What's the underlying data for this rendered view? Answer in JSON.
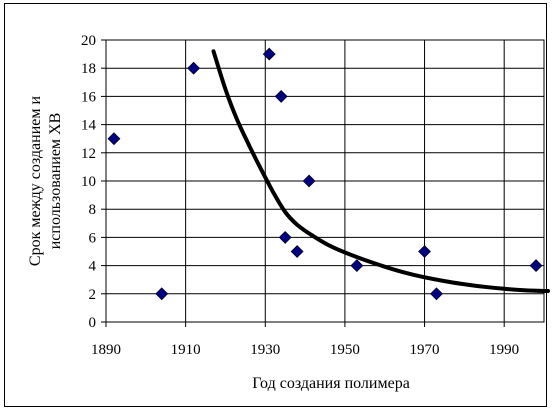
{
  "chart_data": {
    "type": "scatter",
    "title": "",
    "xlabel": "Год создания полимера",
    "ylabel_lines": [
      "Срок между созданием и",
      "использованием ХВ"
    ],
    "xlim": [
      1890,
      2000
    ],
    "ylim": [
      0,
      20
    ],
    "xticks": [
      1890,
      1910,
      1930,
      1950,
      1970,
      1990
    ],
    "yticks": [
      0,
      2,
      4,
      6,
      8,
      10,
      12,
      14,
      16,
      18,
      20
    ],
    "grid": true,
    "legend": "none",
    "series": [
      {
        "marker": "diamond",
        "color": "#000080",
        "points": [
          {
            "x": 1892,
            "y": 13
          },
          {
            "x": 1904,
            "y": 2
          },
          {
            "x": 1912,
            "y": 18
          },
          {
            "x": 1931,
            "y": 19
          },
          {
            "x": 1934,
            "y": 16
          },
          {
            "x": 1935,
            "y": 6
          },
          {
            "x": 1938,
            "y": 5
          },
          {
            "x": 1941,
            "y": 10
          },
          {
            "x": 1953,
            "y": 4
          },
          {
            "x": 1970,
            "y": 5
          },
          {
            "x": 1973,
            "y": 2
          },
          {
            "x": 1998,
            "y": 4
          }
        ]
      },
      {
        "type": "line",
        "color": "#000000",
        "points": [
          {
            "x": 1917,
            "y": 19.2
          },
          {
            "x": 1920,
            "y": 16.5
          },
          {
            "x": 1923,
            "y": 14.3
          },
          {
            "x": 1926,
            "y": 12.5
          },
          {
            "x": 1929,
            "y": 10.8
          },
          {
            "x": 1932,
            "y": 9.2
          },
          {
            "x": 1935,
            "y": 7.8
          },
          {
            "x": 1938,
            "y": 6.9
          },
          {
            "x": 1942,
            "y": 6.1
          },
          {
            "x": 1947,
            "y": 5.3
          },
          {
            "x": 1955,
            "y": 4.4
          },
          {
            "x": 1965,
            "y": 3.5
          },
          {
            "x": 1975,
            "y": 2.9
          },
          {
            "x": 1985,
            "y": 2.5
          },
          {
            "x": 1995,
            "y": 2.25
          },
          {
            "x": 2001,
            "y": 2.2
          }
        ]
      }
    ]
  }
}
